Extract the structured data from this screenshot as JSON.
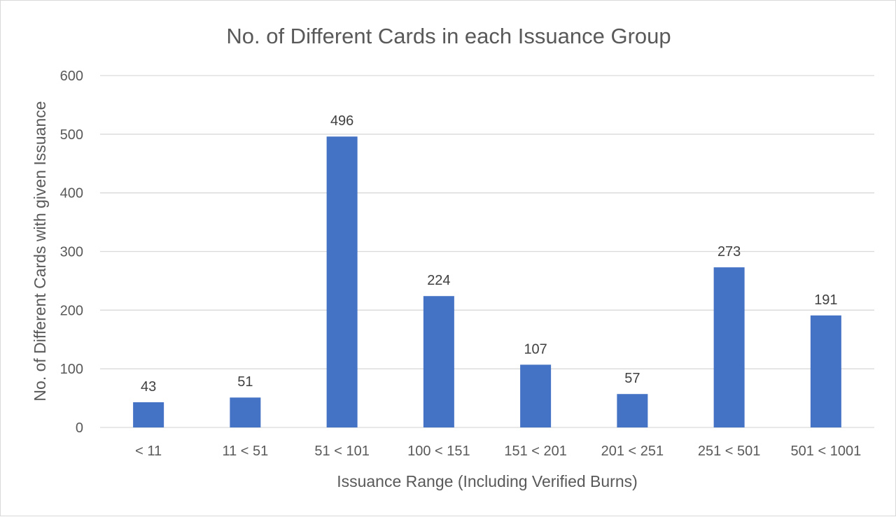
{
  "chart_data": {
    "type": "bar",
    "title": "No. of Different Cards in each Issuance Group",
    "xlabel": "Issuance Range (Including Verified Burns)",
    "ylabel": "No. of Different Cards with given Issuance",
    "categories": [
      "< 11",
      "11 < 51",
      "51 < 101",
      "100 < 151",
      "151 < 201",
      "201 < 251",
      "251 < 501",
      "501 < 1001"
    ],
    "values": [
      43,
      51,
      496,
      224,
      107,
      57,
      273,
      191
    ],
    "ylim": [
      0,
      600
    ],
    "yticks": [
      0,
      100,
      200,
      300,
      400,
      500,
      600
    ],
    "grid": true,
    "legend": "none",
    "data_labels": true,
    "colors": {
      "bar": "#4472c4",
      "grid": "#d9d9d9",
      "text": "#595959",
      "data_label": "#404040"
    }
  }
}
